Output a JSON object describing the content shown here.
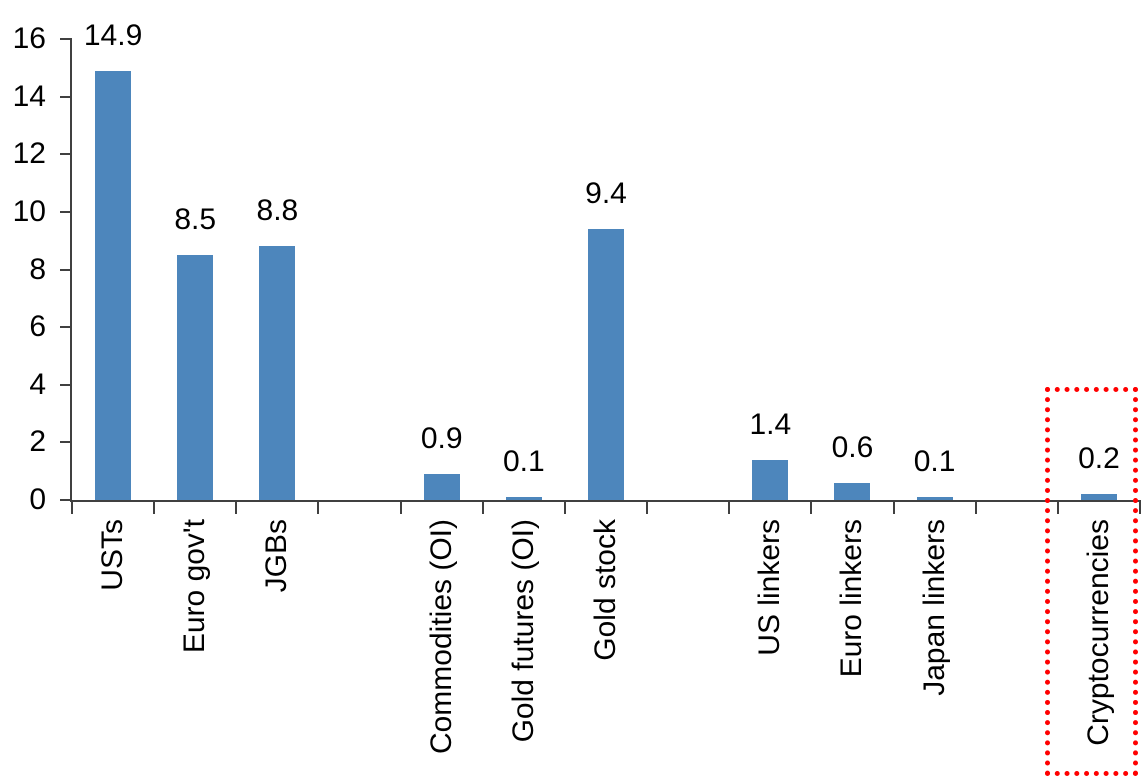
{
  "chart_data": {
    "type": "bar",
    "title": "",
    "xlabel": "",
    "ylabel": "",
    "ylim": [
      0,
      16
    ],
    "ytick_labels": [
      "0",
      "2",
      "4",
      "6",
      "8",
      "10",
      "12",
      "14",
      "16"
    ],
    "yticks": [
      0,
      2,
      4,
      6,
      8,
      10,
      12,
      14,
      16
    ],
    "grid": "off",
    "legend": "none",
    "total_slots": 13,
    "bars": [
      {
        "slot": 1,
        "label": "USTs",
        "value": 14.9,
        "value_label": "14.9"
      },
      {
        "slot": 2,
        "label": "Euro gov't",
        "value": 8.5,
        "value_label": "8.5"
      },
      {
        "slot": 3,
        "label": "JGBs",
        "value": 8.8,
        "value_label": "8.8"
      },
      {
        "slot": 5,
        "label": "Commodities (OI)",
        "value": 0.9,
        "value_label": "0.9"
      },
      {
        "slot": 6,
        "label": "Gold futures (OI)",
        "value": 0.1,
        "value_label": "0.1"
      },
      {
        "slot": 7,
        "label": "Gold stock",
        "value": 9.4,
        "value_label": "9.4"
      },
      {
        "slot": 9,
        "label": "US linkers",
        "value": 1.4,
        "value_label": "1.4"
      },
      {
        "slot": 10,
        "label": "Euro linkers",
        "value": 0.6,
        "value_label": "0.6"
      },
      {
        "slot": 11,
        "label": "Japan linkers",
        "value": 0.1,
        "value_label": "0.1"
      },
      {
        "slot": 13,
        "label": "Cryptocurrencies",
        "value": 0.2,
        "value_label": "0.2",
        "highlighted": true
      }
    ],
    "colors": {
      "bar": "#4D86BC",
      "axis": "#404040",
      "text": "#000000",
      "highlight_box": "#FF0000"
    },
    "annotations": [
      {
        "kind": "red-dotted-box",
        "around": "Cryptocurrencies"
      }
    ]
  }
}
